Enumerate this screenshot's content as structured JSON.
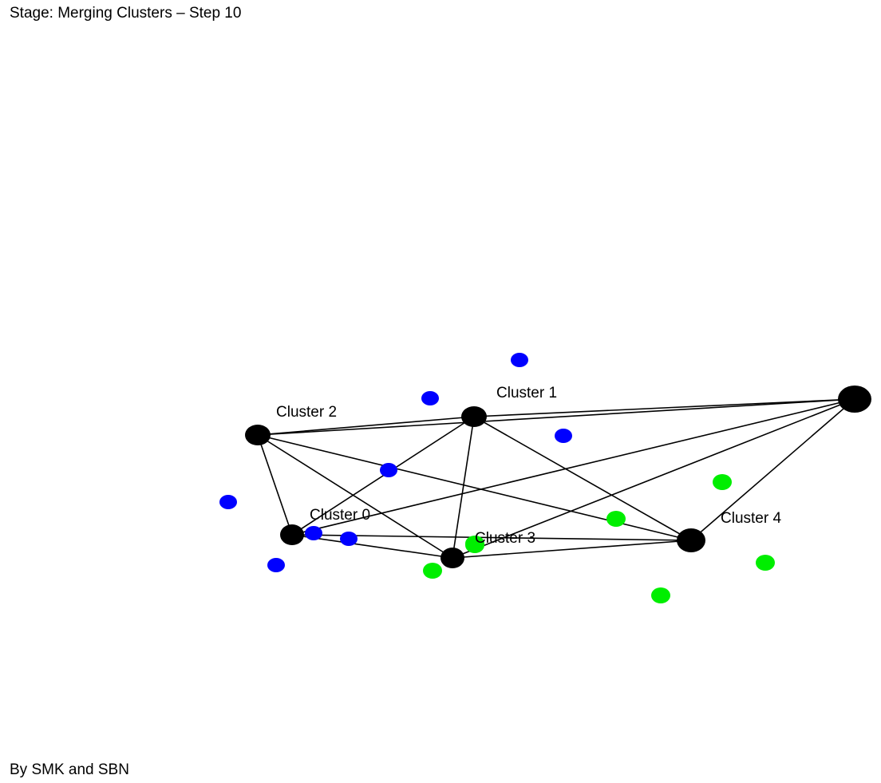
{
  "header": {
    "stage_text": "Stage: Merging Clusters – Step 10"
  },
  "footer": {
    "credits_text": "By SMK and SBN"
  },
  "colors": {
    "cluster_node": "#000000",
    "edge": "#000000",
    "point_blue": "#0000ff",
    "point_green": "#00ee00"
  },
  "clusters": [
    {
      "id": "c0",
      "label": "Cluster 0"
    },
    {
      "id": "c1",
      "label": "Cluster 1"
    },
    {
      "id": "c2",
      "label": "Cluster 2"
    },
    {
      "id": "c3",
      "label": "Cluster 3"
    },
    {
      "id": "c4",
      "label": "Cluster 4"
    },
    {
      "id": "c5",
      "label": ""
    }
  ],
  "edges": [
    [
      "c2",
      "c1"
    ],
    [
      "c2",
      "c5"
    ],
    [
      "c2",
      "c0"
    ],
    [
      "c2",
      "c3"
    ],
    [
      "c2",
      "c4"
    ],
    [
      "c1",
      "c5"
    ],
    [
      "c1",
      "c0"
    ],
    [
      "c1",
      "c3"
    ],
    [
      "c1",
      "c4"
    ],
    [
      "c0",
      "c3"
    ],
    [
      "c0",
      "c4"
    ],
    [
      "c0",
      "c5"
    ],
    [
      "c3",
      "c4"
    ],
    [
      "c3",
      "c5"
    ],
    [
      "c4",
      "c5"
    ]
  ],
  "points": [
    {
      "color": "blue"
    },
    {
      "color": "blue"
    },
    {
      "color": "blue"
    },
    {
      "color": "blue"
    },
    {
      "color": "blue"
    },
    {
      "color": "blue"
    },
    {
      "color": "blue"
    },
    {
      "color": "blue"
    },
    {
      "color": "green"
    },
    {
      "color": "green"
    },
    {
      "color": "green"
    },
    {
      "color": "green"
    },
    {
      "color": "green"
    },
    {
      "color": "green"
    },
    {
      "color": "green"
    }
  ]
}
